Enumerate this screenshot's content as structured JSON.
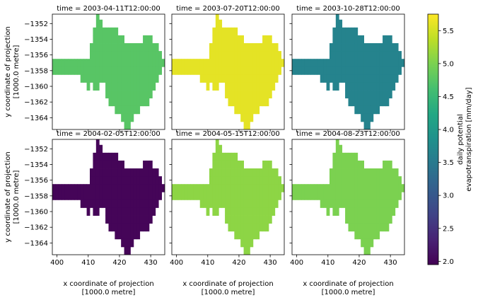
{
  "chart_data": {
    "type": "heatmap",
    "layout": {
      "rows": 2,
      "cols": 3,
      "sharex": true,
      "sharey": true
    },
    "xlabel": [
      "x coordinate of projection",
      "[1000.0 metre]"
    ],
    "ylabel": [
      "y coordinate of projection",
      "[1000.0 metre]"
    ],
    "xlim": [
      398.5,
      434.5
    ],
    "ylim": [
      -1365.5,
      -1350.8
    ],
    "x_ticks": [
      400,
      410,
      420,
      430
    ],
    "y_ticks": [
      -1352,
      -1354,
      -1356,
      -1358,
      -1360,
      -1362,
      -1364
    ],
    "x_ticklabels": [
      "400",
      "410",
      "420",
      "430"
    ],
    "y_ticklabels": [
      "−1352",
      "−1354",
      "−1356",
      "−1358",
      "−1360",
      "−1362",
      "−1364"
    ],
    "cell_size": 1,
    "mask_rows": [
      {
        "y": -1351,
        "x_from": 413,
        "x_to": 413
      },
      {
        "y": -1352,
        "x_from": 413,
        "x_to": 414
      },
      {
        "y": -1353,
        "x_from": 412,
        "x_to": 419
      },
      {
        "y": -1354,
        "x_from": 412,
        "x_to": 421
      },
      {
        "y": -1354,
        "x_from": 428,
        "x_to": 430
      },
      {
        "y": -1355,
        "x_from": 411,
        "x_to": 432
      },
      {
        "y": -1356,
        "x_from": 411,
        "x_to": 433
      },
      {
        "y": -1357,
        "x_from": 398,
        "x_to": 434
      },
      {
        "y": -1358,
        "x_from": 398,
        "x_to": 433
      },
      {
        "y": -1359,
        "x_from": 408,
        "x_to": 432
      },
      {
        "y": -1360,
        "x_from": 410,
        "x_to": 431
      },
      {
        "y": -1361,
        "x_from": 416,
        "x_to": 430
      },
      {
        "y": -1362,
        "x_from": 417,
        "x_to": 429
      },
      {
        "y": -1363,
        "x_from": 419,
        "x_to": 426
      },
      {
        "y": -1364,
        "x_from": 421,
        "x_to": 424
      },
      {
        "y": -1365,
        "x_from": 422,
        "x_to": 423
      }
    ],
    "mask_holes": [
      {
        "y": -1360,
        "x": 411
      },
      {
        "y": -1360,
        "x": 414
      },
      {
        "y": -1360,
        "x": 415
      }
    ],
    "panels": [
      {
        "title": "time = 2003-04-11T12:00:00",
        "value": 4.75
      },
      {
        "title": "time = 2003-07-20T12:00:00",
        "value": 5.6
      },
      {
        "title": "time = 2003-10-28T12:00:00",
        "value": 3.65
      },
      {
        "title": "time = 2004-02-05T12:00:00",
        "value": 2.0
      },
      {
        "title": "time = 2004-05-15T12:00:00",
        "value": 5.1
      },
      {
        "title": "time = 2004-08-23T12:00:00",
        "value": 5.0
      }
    ],
    "colorbar": {
      "label": [
        "daily potential",
        "evapotranspiration [mm/day]"
      ],
      "colormap": "viridis",
      "vmin": 1.95,
      "vmax": 5.75,
      "ticks": [
        2.0,
        2.5,
        3.0,
        3.5,
        4.0,
        4.5,
        5.0,
        5.5
      ],
      "ticklabels": [
        "2.0",
        "2.5",
        "3.0",
        "3.5",
        "4.0",
        "4.5",
        "5.0",
        "5.5"
      ]
    }
  }
}
